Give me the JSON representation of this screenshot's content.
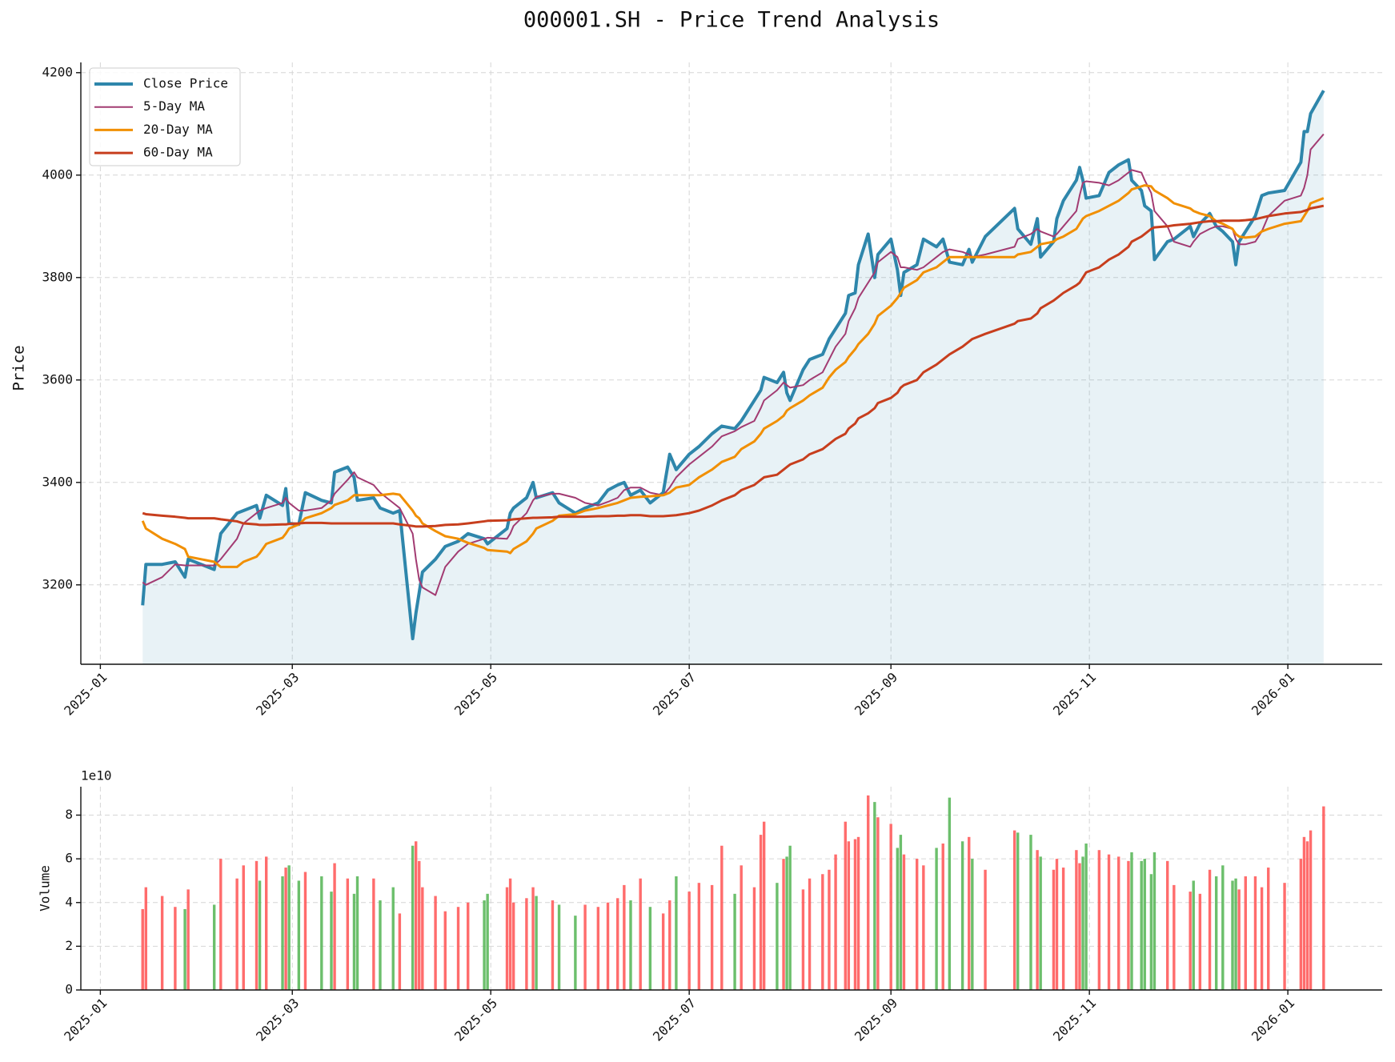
{
  "chart_data": [
    {
      "type": "line",
      "title": "000001.SH - Price Trend Analysis",
      "y_label": "Price",
      "x": [
        "2025-01-14",
        "2025-01-15",
        "2025-01-20",
        "2025-01-24",
        "2025-01-27",
        "2025-01-28",
        "2025-02-05",
        "2025-02-07",
        "2025-02-12",
        "2025-02-14",
        "2025-02-18",
        "2025-02-19",
        "2025-02-21",
        "2025-02-26",
        "2025-02-27",
        "2025-02-28",
        "2025-03-03",
        "2025-03-05",
        "2025-03-10",
        "2025-03-13",
        "2025-03-14",
        "2025-03-18",
        "2025-03-20",
        "2025-03-21",
        "2025-03-26",
        "2025-03-28",
        "2025-04-01",
        "2025-04-03",
        "2025-04-07",
        "2025-04-08",
        "2025-04-09",
        "2025-04-10",
        "2025-04-14",
        "2025-04-17",
        "2025-04-21",
        "2025-04-24",
        "2025-04-29",
        "2025-04-30",
        "2025-05-06",
        "2025-05-07",
        "2025-05-08",
        "2025-05-12",
        "2025-05-14",
        "2025-05-15",
        "2025-05-20",
        "2025-05-22",
        "2025-05-27",
        "2025-05-30",
        "2025-06-03",
        "2025-06-06",
        "2025-06-09",
        "2025-06-11",
        "2025-06-13",
        "2025-06-16",
        "2025-06-19",
        "2025-06-23",
        "2025-06-25",
        "2025-06-27",
        "2025-07-01",
        "2025-07-04",
        "2025-07-08",
        "2025-07-11",
        "2025-07-15",
        "2025-07-17",
        "2025-07-21",
        "2025-07-23",
        "2025-07-24",
        "2025-07-28",
        "2025-07-30",
        "2025-07-31",
        "2025-08-01",
        "2025-08-05",
        "2025-08-07",
        "2025-08-11",
        "2025-08-13",
        "2025-08-15",
        "2025-08-18",
        "2025-08-19",
        "2025-08-21",
        "2025-08-22",
        "2025-08-25",
        "2025-08-27",
        "2025-08-28",
        "2025-09-01",
        "2025-09-03",
        "2025-09-04",
        "2025-09-05",
        "2025-09-09",
        "2025-09-11",
        "2025-09-15",
        "2025-09-17",
        "2025-09-19",
        "2025-09-23",
        "2025-09-25",
        "2025-09-26",
        "2025-09-30",
        "2025-10-09",
        "2025-10-10",
        "2025-10-14",
        "2025-10-16",
        "2025-10-17",
        "2025-10-21",
        "2025-10-22",
        "2025-10-24",
        "2025-10-28",
        "2025-10-29",
        "2025-10-30",
        "2025-10-31",
        "2025-11-04",
        "2025-11-07",
        "2025-11-10",
        "2025-11-13",
        "2025-11-14",
        "2025-11-17",
        "2025-11-18",
        "2025-11-20",
        "2025-11-21",
        "2025-11-25",
        "2025-11-27",
        "2025-12-02",
        "2025-12-03",
        "2025-12-05",
        "2025-12-08",
        "2025-12-10",
        "2025-12-12",
        "2025-12-15",
        "2025-12-16",
        "2025-12-17",
        "2025-12-19",
        "2025-12-22",
        "2025-12-24",
        "2025-12-26",
        "2025-12-31",
        "2026-01-05",
        "2026-01-06",
        "2026-01-07",
        "2026-01-08",
        "2026-01-12"
      ],
      "series": [
        {
          "name": "Close Price",
          "color": "#2e86ab",
          "line_width": 4,
          "fill": true,
          "values": [
            3160,
            3240,
            3240,
            3245,
            3215,
            3250,
            3230,
            3300,
            3340,
            3345,
            3355,
            3330,
            3375,
            3355,
            3388,
            3320,
            3318,
            3380,
            3365,
            3360,
            3420,
            3430,
            3410,
            3365,
            3370,
            3350,
            3340,
            3345,
            3095,
            3145,
            3185,
            3225,
            3250,
            3275,
            3285,
            3300,
            3290,
            3280,
            3310,
            3340,
            3350,
            3370,
            3400,
            3370,
            3380,
            3360,
            3340,
            3350,
            3360,
            3385,
            3395,
            3400,
            3375,
            3385,
            3360,
            3380,
            3455,
            3425,
            3455,
            3470,
            3495,
            3510,
            3505,
            3520,
            3560,
            3580,
            3605,
            3595,
            3615,
            3575,
            3560,
            3620,
            3640,
            3650,
            3680,
            3700,
            3730,
            3765,
            3770,
            3825,
            3885,
            3800,
            3845,
            3875,
            3815,
            3765,
            3810,
            3825,
            3875,
            3860,
            3875,
            3830,
            3825,
            3855,
            3830,
            3880,
            3935,
            3895,
            3865,
            3915,
            3840,
            3870,
            3915,
            3950,
            3990,
            4015,
            3990,
            3955,
            3960,
            4005,
            4020,
            4030,
            3990,
            3970,
            3940,
            3930,
            3835,
            3870,
            3875,
            3900,
            3880,
            3905,
            3925,
            3900,
            3890,
            3870,
            3825,
            3870,
            3890,
            3920,
            3960,
            3965,
            3970,
            4025,
            4085,
            4085,
            4120,
            4165
          ]
        },
        {
          "name": "5-Day MA",
          "color": "#a23b72",
          "line_width": 2,
          "values": [
            3205,
            3200,
            3215,
            3240,
            3238,
            3238,
            3238,
            3250,
            3290,
            3320,
            3340,
            3345,
            3350,
            3360,
            3370,
            3360,
            3345,
            3345,
            3350,
            3365,
            3378,
            3405,
            3420,
            3410,
            3395,
            3380,
            3360,
            3350,
            3300,
            3250,
            3210,
            3195,
            3180,
            3235,
            3265,
            3280,
            3290,
            3292,
            3290,
            3300,
            3315,
            3340,
            3365,
            3372,
            3378,
            3378,
            3370,
            3360,
            3355,
            3362,
            3370,
            3385,
            3390,
            3390,
            3380,
            3375,
            3390,
            3410,
            3435,
            3450,
            3470,
            3490,
            3500,
            3508,
            3520,
            3545,
            3560,
            3580,
            3595,
            3590,
            3585,
            3590,
            3600,
            3615,
            3640,
            3665,
            3690,
            3715,
            3740,
            3760,
            3790,
            3810,
            3830,
            3850,
            3840,
            3820,
            3820,
            3815,
            3820,
            3840,
            3850,
            3855,
            3850,
            3845,
            3840,
            3845,
            3860,
            3875,
            3885,
            3895,
            3890,
            3880,
            3885,
            3900,
            3930,
            3960,
            3985,
            3988,
            3985,
            3980,
            3990,
            4005,
            4010,
            4005,
            3990,
            3965,
            3930,
            3900,
            3870,
            3860,
            3870,
            3885,
            3895,
            3900,
            3900,
            3895,
            3875,
            3865,
            3865,
            3870,
            3890,
            3920,
            3950,
            3960,
            3975,
            4000,
            4050,
            4080
          ]
        },
        {
          "name": "20-Day MA",
          "color": "#f18f01",
          "line_width": 3,
          "values": [
            3325,
            3310,
            3290,
            3280,
            3270,
            3255,
            3245,
            3235,
            3235,
            3245,
            3255,
            3262,
            3280,
            3292,
            3300,
            3310,
            3318,
            3330,
            3340,
            3350,
            3356,
            3365,
            3375,
            3375,
            3375,
            3375,
            3378,
            3376,
            3345,
            3335,
            3330,
            3320,
            3305,
            3295,
            3290,
            3282,
            3272,
            3268,
            3265,
            3262,
            3270,
            3285,
            3300,
            3310,
            3325,
            3335,
            3338,
            3345,
            3350,
            3355,
            3360,
            3365,
            3370,
            3372,
            3373,
            3375,
            3380,
            3390,
            3395,
            3410,
            3425,
            3440,
            3450,
            3465,
            3480,
            3495,
            3505,
            3520,
            3530,
            3540,
            3545,
            3560,
            3570,
            3585,
            3605,
            3620,
            3635,
            3645,
            3660,
            3670,
            3690,
            3710,
            3725,
            3745,
            3760,
            3770,
            3780,
            3795,
            3810,
            3820,
            3830,
            3840,
            3840,
            3840,
            3840,
            3840,
            3840,
            3845,
            3850,
            3860,
            3865,
            3870,
            3875,
            3880,
            3895,
            3905,
            3915,
            3920,
            3930,
            3940,
            3950,
            3965,
            3972,
            3978,
            3980,
            3978,
            3970,
            3955,
            3945,
            3935,
            3930,
            3925,
            3920,
            3910,
            3905,
            3895,
            3885,
            3880,
            3878,
            3880,
            3890,
            3895,
            3905,
            3910,
            3920,
            3930,
            3945,
            3955
          ]
        },
        {
          "name": "60-Day MA",
          "color": "#c73e1d",
          "line_width": 3,
          "values": [
            3340,
            3338,
            3335,
            3333,
            3331,
            3330,
            3330,
            3328,
            3324,
            3320,
            3318,
            3317,
            3317,
            3318,
            3318,
            3319,
            3320,
            3321,
            3321,
            3320,
            3320,
            3320,
            3320,
            3320,
            3320,
            3320,
            3320,
            3318,
            3315,
            3314,
            3314,
            3314,
            3315,
            3317,
            3318,
            3320,
            3324,
            3325,
            3326,
            3327,
            3328,
            3330,
            3331,
            3331,
            3332,
            3333,
            3333,
            3333,
            3334,
            3334,
            3335,
            3335,
            3336,
            3336,
            3334,
            3334,
            3335,
            3336,
            3340,
            3345,
            3355,
            3365,
            3375,
            3385,
            3395,
            3405,
            3410,
            3415,
            3425,
            3430,
            3435,
            3445,
            3455,
            3465,
            3475,
            3485,
            3495,
            3505,
            3515,
            3525,
            3535,
            3545,
            3555,
            3565,
            3575,
            3585,
            3590,
            3600,
            3615,
            3630,
            3640,
            3650,
            3665,
            3675,
            3680,
            3690,
            3710,
            3715,
            3720,
            3730,
            3740,
            3755,
            3760,
            3770,
            3785,
            3790,
            3800,
            3810,
            3820,
            3835,
            3845,
            3860,
            3870,
            3880,
            3885,
            3895,
            3898,
            3900,
            3902,
            3905,
            3906,
            3908,
            3910,
            3910,
            3911,
            3911,
            3911,
            3911,
            3912,
            3914,
            3917,
            3920,
            3925,
            3928,
            3930,
            3932,
            3935,
            3940
          ]
        }
      ],
      "xlim": [
        "2024-12-26",
        "2026-01-30"
      ],
      "xticks": [
        {
          "value": "2025-01-01",
          "label": "2025-01"
        },
        {
          "value": "2025-03-01",
          "label": "2025-03"
        },
        {
          "value": "2025-05-01",
          "label": "2025-05"
        },
        {
          "value": "2025-07-01",
          "label": "2025-07"
        },
        {
          "value": "2025-09-01",
          "label": "2025-09"
        },
        {
          "value": "2025-11-01",
          "label": "2025-11"
        },
        {
          "value": "2026-01-01",
          "label": "2026-01"
        }
      ],
      "ylim": [
        3045,
        4220
      ],
      "yticks": [
        3200,
        3400,
        3600,
        3800,
        4000,
        4200
      ],
      "grid": true,
      "legend": "upper left"
    },
    {
      "type": "bar",
      "y_label": "Volume",
      "offset_label": "1e10",
      "values": [
        37000000000.0,
        47000000000.0,
        43000000000.0,
        38000000000.0,
        37000000000.0,
        46000000000.0,
        39000000000.0,
        60000000000.0,
        51000000000.0,
        57000000000.0,
        59000000000.0,
        50000000000.0,
        61000000000.0,
        52000000000.0,
        56000000000.0,
        57000000000.0,
        50000000000.0,
        54000000000.0,
        52000000000.0,
        45000000000.0,
        58000000000.0,
        51000000000.0,
        44000000000.0,
        52000000000.0,
        51000000000.0,
        41000000000.0,
        47000000000.0,
        35000000000.0,
        66000000000.0,
        68000000000.0,
        59000000000.0,
        47000000000.0,
        43000000000.0,
        36000000000.0,
        38000000000.0,
        40000000000.0,
        41000000000.0,
        44000000000.0,
        47000000000.0,
        51000000000.0,
        40000000000.0,
        42000000000.0,
        47000000000.0,
        43000000000.0,
        41000000000.0,
        39000000000.0,
        34000000000.0,
        39000000000.0,
        38000000000.0,
        40000000000.0,
        42000000000.0,
        48000000000.0,
        41000000000.0,
        51000000000.0,
        38000000000.0,
        35000000000.0,
        41000000000.0,
        52000000000.0,
        45000000000.0,
        49000000000.0,
        48000000000.0,
        66000000000.0,
        44000000000.0,
        57000000000.0,
        47000000000.0,
        71000000000.0,
        77000000000.0,
        49000000000.0,
        60000000000.0,
        61000000000.0,
        66000000000.0,
        46000000000.0,
        51000000000.0,
        53000000000.0,
        55000000000.0,
        62000000000.0,
        77000000000.0,
        68000000000.0,
        69000000000.0,
        70000000000.0,
        89000000000.0,
        86000000000.0,
        79000000000.0,
        76000000000.0,
        65000000000.0,
        71000000000.0,
        62000000000.0,
        60000000000.0,
        57000000000.0,
        65000000000.0,
        67000000000.0,
        88000000000.0,
        68000000000.0,
        70000000000.0,
        60000000000.0,
        55000000000.0,
        73000000000.0,
        72000000000.0,
        71000000000.0,
        64000000000.0,
        61000000000.0,
        55000000000.0,
        60000000000.0,
        56000000000.0,
        64000000000.0,
        58000000000.0,
        61000000000.0,
        67000000000.0,
        64000000000.0,
        62000000000.0,
        61000000000.0,
        59000000000.0,
        63000000000.0,
        59000000000.0,
        60000000000.0,
        53000000000.0,
        63000000000.0,
        59000000000.0,
        48000000000.0,
        45000000000.0,
        50000000000.0,
        44000000000.0,
        55000000000.0,
        52000000000.0,
        57000000000.0,
        50000000000.0,
        51000000000.0,
        46000000000.0,
        52000000000.0,
        52000000000.0,
        47000000000.0,
        56000000000.0,
        49000000000.0,
        60000000000.0,
        70000000000.0,
        68000000000.0,
        73000000000.0,
        84000000000.0
      ],
      "up_color": "#ff5c5c",
      "down_color": "#5cb85c",
      "xlim": [
        "2024-12-26",
        "2026-01-30"
      ],
      "xticks": [
        {
          "value": "2025-01-01",
          "label": "2025-01"
        },
        {
          "value": "2025-03-01",
          "label": "2025-03"
        },
        {
          "value": "2025-05-01",
          "label": "2025-05"
        },
        {
          "value": "2025-07-01",
          "label": "2025-07"
        },
        {
          "value": "2025-09-01",
          "label": "2025-09"
        },
        {
          "value": "2025-11-01",
          "label": "2025-11"
        },
        {
          "value": "2026-01-01",
          "label": "2026-01"
        }
      ],
      "ylim": [
        0,
        93000000000.0
      ],
      "yticks": [
        0,
        {
          "value": 20000000000.0,
          "label": "2"
        },
        {
          "value": 40000000000.0,
          "label": "4"
        },
        {
          "value": 60000000000.0,
          "label": "6"
        },
        {
          "value": 80000000000.0,
          "label": "8"
        }
      ],
      "grid": true
    }
  ]
}
